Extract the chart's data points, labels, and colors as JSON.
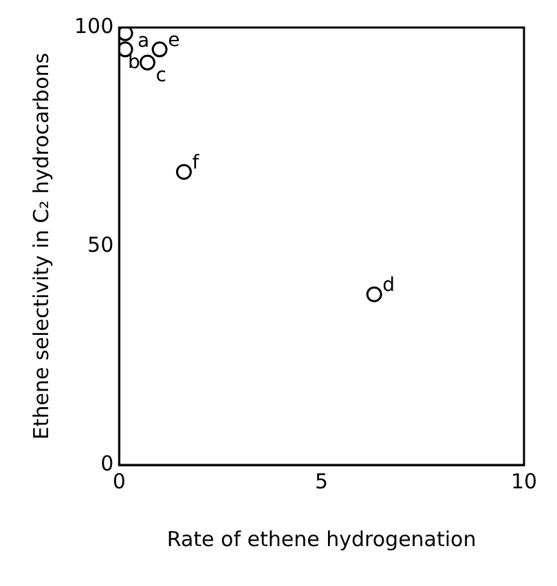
{
  "chart_data": {
    "type": "scatter",
    "xlabel": "Rate of ethene hydrogenation",
    "ylabel": "Ethene selectivity in C₂ hydrocarbons",
    "x": [
      0.15,
      0.15,
      0.7,
      6.3,
      1.0,
      1.6
    ],
    "series": [
      {
        "color": "#000000",
        "values": [
          98.7,
          95,
          92,
          39,
          95,
          67
        ]
      }
    ],
    "marker": "circle",
    "grid": false,
    "legend": false,
    "xlim": [
      0,
      10
    ],
    "xticks": [
      0,
      5,
      10
    ],
    "ylim": [
      0,
      100
    ],
    "yticks": [
      0,
      50,
      100
    ],
    "annotations": [
      {
        "text": "a",
        "x": 0.15,
        "y": 98.7
      },
      {
        "text": "b",
        "x": 0.15,
        "y": 95
      },
      {
        "text": "c",
        "x": 0.7,
        "y": 92
      },
      {
        "text": "d",
        "x": 6.3,
        "y": 39
      },
      {
        "text": "e",
        "x": 1.0,
        "y": 95
      },
      {
        "text": "f",
        "x": 1.6,
        "y": 67
      }
    ]
  }
}
